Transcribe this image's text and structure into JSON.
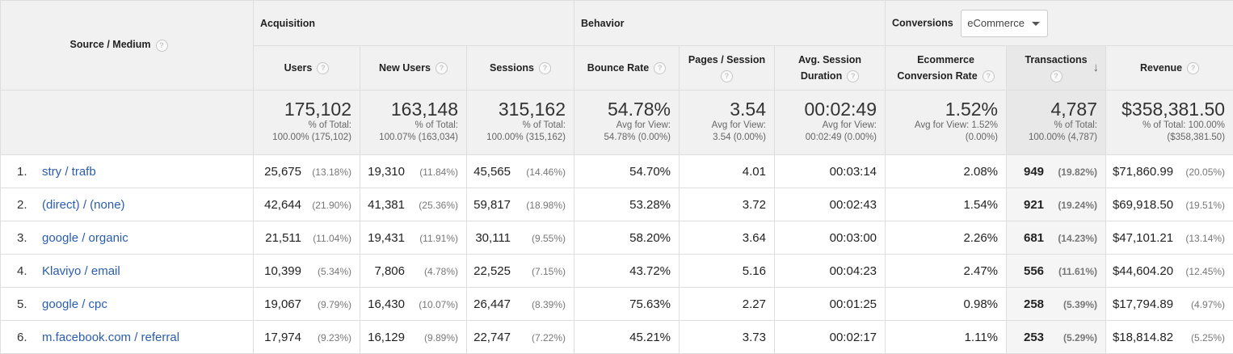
{
  "header": {
    "source_medium": "Source / Medium",
    "acquisition": "Acquisition",
    "behavior": "Behavior",
    "conversions": "Conversions",
    "conversions_select": "eCommerce",
    "help_glyph": "?",
    "sort_arrow": "↓",
    "col_users": "Users",
    "col_new_users": "New Users",
    "col_sessions": "Sessions",
    "col_bounce": "Bounce Rate",
    "col_pps_1": "Pages / Session",
    "col_asd_1": "Avg. Session",
    "col_asd_2": "Duration",
    "col_ecr_1": "Ecommerce",
    "col_ecr_2": "Conversion Rate",
    "col_transactions": "Transactions",
    "col_revenue": "Revenue"
  },
  "totals": {
    "users": {
      "value": "175,102",
      "sub1": "% of Total:",
      "sub2": "100.00% (175,102)"
    },
    "new_users": {
      "value": "163,148",
      "sub1": "% of Total:",
      "sub2": "100.07% (163,034)"
    },
    "sessions": {
      "value": "315,162",
      "sub1": "% of Total:",
      "sub2": "100.00% (315,162)"
    },
    "bounce": {
      "value": "54.78%",
      "sub1": "Avg for View:",
      "sub2": "54.78% (0.00%)"
    },
    "pps": {
      "value": "3.54",
      "sub1": "Avg for View:",
      "sub2": "3.54 (0.00%)"
    },
    "asd": {
      "value": "00:02:49",
      "sub1": "Avg for View:",
      "sub2": "00:02:49 (0.00%)"
    },
    "ecr": {
      "value": "1.52%",
      "sub1": "Avg for View: 1.52%",
      "sub2": "(0.00%)"
    },
    "transactions": {
      "value": "4,787",
      "sub1": "% of Total:",
      "sub2": "100.00% (4,787)"
    },
    "revenue": {
      "value": "$358,381.50",
      "sub1": "% of Total: 100.00%",
      "sub2": "($358,381.50)"
    }
  },
  "rows": [
    {
      "num": "1.",
      "source": "stry / trafb",
      "users": "25,675",
      "users_pct": "(13.18%)",
      "new_users": "19,310",
      "new_users_pct": "(11.84%)",
      "sessions": "45,565",
      "sessions_pct": "(14.46%)",
      "bounce": "54.70%",
      "pps": "4.01",
      "asd": "00:03:14",
      "ecr": "2.08%",
      "transactions": "949",
      "transactions_pct": "(19.82%)",
      "revenue": "$71,860.99",
      "revenue_pct": "(20.05%)"
    },
    {
      "num": "2.",
      "source": "(direct) / (none)",
      "users": "42,644",
      "users_pct": "(21.90%)",
      "new_users": "41,381",
      "new_users_pct": "(25.36%)",
      "sessions": "59,817",
      "sessions_pct": "(18.98%)",
      "bounce": "53.28%",
      "pps": "3.72",
      "asd": "00:02:43",
      "ecr": "1.54%",
      "transactions": "921",
      "transactions_pct": "(19.24%)",
      "revenue": "$69,918.50",
      "revenue_pct": "(19.51%)"
    },
    {
      "num": "3.",
      "source": "google / organic",
      "users": "21,511",
      "users_pct": "(11.04%)",
      "new_users": "19,431",
      "new_users_pct": "(11.91%)",
      "sessions": "30,111",
      "sessions_pct": "(9.55%)",
      "bounce": "58.20%",
      "pps": "3.64",
      "asd": "00:03:00",
      "ecr": "2.26%",
      "transactions": "681",
      "transactions_pct": "(14.23%)",
      "revenue": "$47,101.21",
      "revenue_pct": "(13.14%)"
    },
    {
      "num": "4.",
      "source": "Klaviyo / email",
      "users": "10,399",
      "users_pct": "(5.34%)",
      "new_users": "7,806",
      "new_users_pct": "(4.78%)",
      "sessions": "22,525",
      "sessions_pct": "(7.15%)",
      "bounce": "43.72%",
      "pps": "5.16",
      "asd": "00:04:23",
      "ecr": "2.47%",
      "transactions": "556",
      "transactions_pct": "(11.61%)",
      "revenue": "$44,604.20",
      "revenue_pct": "(12.45%)"
    },
    {
      "num": "5.",
      "source": "google / cpc",
      "users": "19,067",
      "users_pct": "(9.79%)",
      "new_users": "16,430",
      "new_users_pct": "(10.07%)",
      "sessions": "26,447",
      "sessions_pct": "(8.39%)",
      "bounce": "75.63%",
      "pps": "2.27",
      "asd": "00:01:25",
      "ecr": "0.98%",
      "transactions": "258",
      "transactions_pct": "(5.39%)",
      "revenue": "$17,794.89",
      "revenue_pct": "(4.97%)"
    },
    {
      "num": "6.",
      "source": "m.facebook.com / referral",
      "users": "17,974",
      "users_pct": "(9.23%)",
      "new_users": "16,129",
      "new_users_pct": "(9.89%)",
      "sessions": "22,747",
      "sessions_pct": "(7.22%)",
      "bounce": "45.21%",
      "pps": "3.73",
      "asd": "00:02:17",
      "ecr": "1.11%",
      "transactions": "253",
      "transactions_pct": "(5.29%)",
      "revenue": "$18,814.82",
      "revenue_pct": "(5.25%)"
    }
  ]
}
